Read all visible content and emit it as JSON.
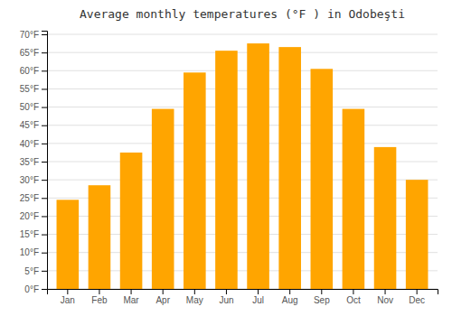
{
  "chart_data": {
    "type": "bar",
    "title": "Average monthly temperatures (°F ) in Odobeşti",
    "categories": [
      "Jan",
      "Feb",
      "Mar",
      "Apr",
      "May",
      "Jun",
      "Jul",
      "Aug",
      "Sep",
      "Oct",
      "Nov",
      "Dec"
    ],
    "values": [
      24.5,
      28.5,
      37.5,
      49.5,
      59.5,
      65.5,
      67.5,
      66.5,
      60.5,
      49.5,
      39.0,
      30.0
    ],
    "color": "#FFA500",
    "ylim": [
      0,
      71
    ],
    "yticks": [
      {
        "value": 0,
        "label": "0°F"
      },
      {
        "value": 5,
        "label": "5°F"
      },
      {
        "value": 10,
        "label": "10°F"
      },
      {
        "value": 15,
        "label": "15°F"
      },
      {
        "value": 20,
        "label": "20°F"
      },
      {
        "value": 25,
        "label": "25°F"
      },
      {
        "value": 30,
        "label": "30°F"
      },
      {
        "value": 35,
        "label": "35°F"
      },
      {
        "value": 40,
        "label": "40°F"
      },
      {
        "value": 45,
        "label": "45°F"
      },
      {
        "value": 50,
        "label": "50°F"
      },
      {
        "value": 55,
        "label": "55°F"
      },
      {
        "value": 60,
        "label": "60°F"
      },
      {
        "value": 65,
        "label": "65°F"
      },
      {
        "value": 70,
        "label": "70°F"
      }
    ],
    "grid": true
  }
}
